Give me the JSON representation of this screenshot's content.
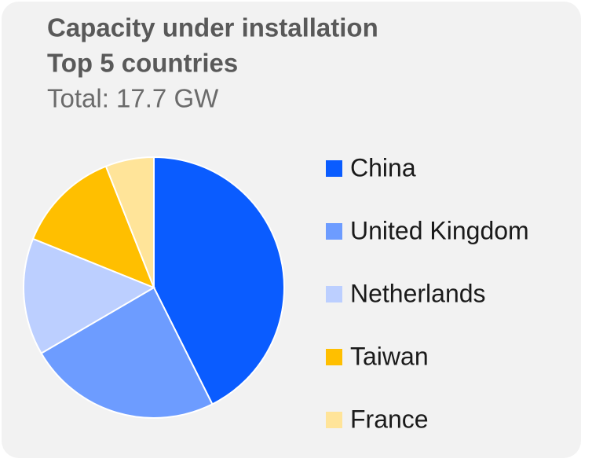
{
  "chart_data": {
    "type": "pie",
    "title": "Capacity under installation",
    "subtitle": "Top 5 countries",
    "annotation": "Total: 17.7 GW",
    "categories": [
      "China",
      "United Kingdom",
      "Netherlands",
      "Taiwan",
      "France"
    ],
    "values": [
      42.6,
      24,
      14.5,
      12.9,
      6
    ],
    "colors": [
      "#0a5cff",
      "#6d9cff",
      "#bccfff",
      "#ffbf00",
      "#ffe499"
    ],
    "legend": "right"
  }
}
